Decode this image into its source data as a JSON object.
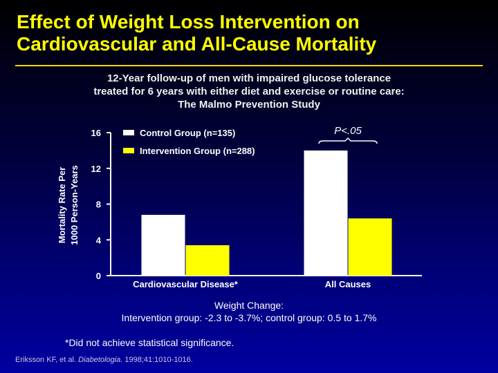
{
  "slide": {
    "title_line1": "Effect of Weight Loss Intervention on",
    "title_line2": "Cardiovascular and All-Cause Mortality",
    "subtitle_line1": "12-Year follow-up of men with impaired glucose tolerance",
    "subtitle_line2": "treated for 6 years with either diet and exercise or routine care:",
    "subtitle_line3": "The Malmo Prevention Study",
    "weight_change_line1": "Weight Change:",
    "weight_change_line2": "Intervention group: -2.3 to -3.7%; control group: 0.5 to 1.7%",
    "footnote": "*Did not achieve statistical significance.",
    "citation_authors": "Eriksson KF, et al. ",
    "citation_journal": "Diabetologia.",
    "citation_rest": " 1998;41:1010-1016."
  },
  "chart_data": {
    "type": "bar",
    "ylabel_line1": "Mortality Rate Per",
    "ylabel_line2": "1000 Person-Years",
    "ylim": [
      0,
      16
    ],
    "yticks": [
      "0",
      "4",
      "8",
      "12",
      "16"
    ],
    "categories": [
      "Cardiovascular Disease*",
      "All Causes"
    ],
    "series": [
      {
        "name": "Control Group (n=135)",
        "values": [
          6.8,
          14.0
        ],
        "color": "#ffffff"
      },
      {
        "name": "Intervention Group (n=288)",
        "values": [
          3.4,
          6.4
        ],
        "color": "#ffff00"
      }
    ],
    "annotation": "P<.05",
    "legend_position": "top-left",
    "grid": false
  }
}
